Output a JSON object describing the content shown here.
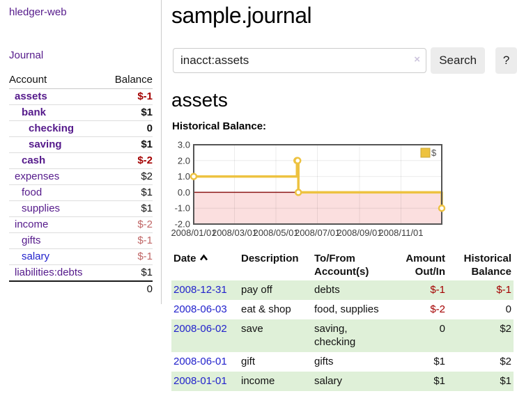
{
  "app": {
    "brand": "hledger-web",
    "nav_journal": "Journal"
  },
  "sidebar": {
    "headers": {
      "account": "Account",
      "balance": "Balance"
    },
    "accounts": [
      {
        "name": "assets",
        "balance": "$-1",
        "level": 1,
        "bold": true
      },
      {
        "name": "bank",
        "balance": "$1",
        "level": 2,
        "bold": true
      },
      {
        "name": "checking",
        "balance": "0",
        "level": 3,
        "bold": true
      },
      {
        "name": "saving",
        "balance": "$1",
        "level": 3,
        "bold": true
      },
      {
        "name": "cash",
        "balance": "$-2",
        "level": 2,
        "bold": true
      },
      {
        "name": "expenses",
        "balance": "$2",
        "level": 1,
        "bold": false
      },
      {
        "name": "food",
        "balance": "$1",
        "level": 2,
        "bold": false
      },
      {
        "name": "supplies",
        "balance": "$1",
        "level": 2,
        "bold": false
      },
      {
        "name": "income",
        "balance": "$-2",
        "level": 1,
        "bold": false
      },
      {
        "name": "gifts",
        "balance": "$-1",
        "level": 2,
        "bold": false
      },
      {
        "name": "salary",
        "balance": "$-1",
        "level": 2,
        "bold": false
      },
      {
        "name": "liabilities:debts",
        "balance": "$1",
        "level": 1,
        "bold": false
      }
    ],
    "total": "0"
  },
  "main": {
    "title": "sample.journal",
    "search": {
      "value": "inacct:assets",
      "clear": "×",
      "button": "Search",
      "help": "?"
    },
    "account_heading": "assets",
    "chart_label": "Historical Balance:"
  },
  "chart_data": {
    "type": "line",
    "title": "Historical Balance",
    "series": [
      {
        "name": "$",
        "color": "#edc240",
        "style": "step",
        "points": [
          [
            "2008-01-01",
            1
          ],
          [
            "2008-06-01",
            2
          ],
          [
            "2008-06-02",
            2
          ],
          [
            "2008-06-03",
            0
          ],
          [
            "2008-12-31",
            -1
          ]
        ]
      }
    ],
    "x_range": [
      "2008-01-01",
      "2008-12-31"
    ],
    "y_range": [
      -2,
      3
    ],
    "y_ticks": [
      {
        "value": 3,
        "label": "3.0"
      },
      {
        "value": 2,
        "label": "2.0"
      },
      {
        "value": 1,
        "label": "1.0"
      },
      {
        "value": 0,
        "label": "0.0"
      },
      {
        "value": -1,
        "label": "-1.0"
      },
      {
        "value": -2,
        "label": "-2.0"
      }
    ],
    "x_ticks": [
      {
        "date": "2008-01-01",
        "label": "2008/01/01"
      },
      {
        "date": "2008-03-01",
        "label": "2008/03/01"
      },
      {
        "date": "2008-05-01",
        "label": "2008/05/01"
      },
      {
        "date": "2008-07-01",
        "label": "2008/07/01"
      },
      {
        "date": "2008-09-01",
        "label": "2008/09/01"
      },
      {
        "date": "2008-11-01",
        "label": "2008/11/01"
      }
    ],
    "grid": true,
    "legend_position": "top-right",
    "negative_region_color": "#fbdfdf",
    "zero_line_color": "#8b1717",
    "border_color": "#545454"
  },
  "register": {
    "headers": {
      "date": "Date",
      "description": "Description",
      "accounts": "To/From Account(s)",
      "amount": "Amount Out/In",
      "balance": "Historical Balance"
    },
    "rows": [
      {
        "date": "2008-12-31",
        "description": "pay off",
        "accounts": "debts",
        "amount": "$-1",
        "balance": "$-1"
      },
      {
        "date": "2008-06-03",
        "description": "eat & shop",
        "accounts": "food, supplies",
        "amount": "$-2",
        "balance": "0"
      },
      {
        "date": "2008-06-02",
        "description": "save",
        "accounts": "saving,\nchecking",
        "amount": "0",
        "balance": "$2"
      },
      {
        "date": "2008-06-01",
        "description": "gift",
        "accounts": "gifts",
        "amount": "$1",
        "balance": "$2"
      },
      {
        "date": "2008-01-01",
        "description": "income",
        "accounts": "salary",
        "amount": "$1",
        "balance": "$1"
      }
    ]
  },
  "colors": {
    "link_purple": "#551a8b",
    "link_blue": "#2222cc",
    "negative_strong": "#a40000",
    "negative_soft": "#c06666",
    "row_stripe_green": "#dff0d8",
    "button_bg": "#ececec",
    "series_gold": "#edc240"
  }
}
